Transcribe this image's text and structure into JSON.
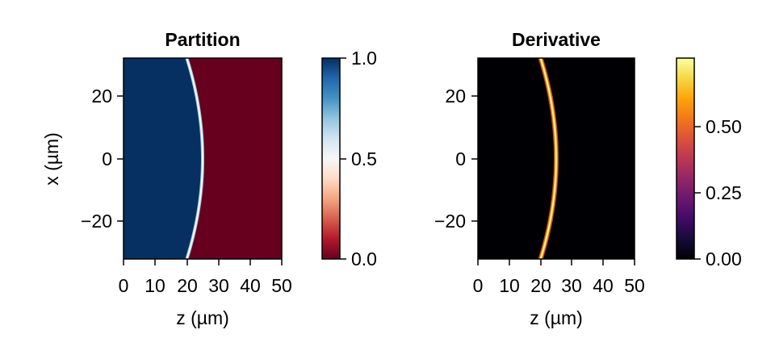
{
  "chart_data": [
    {
      "type": "heatmap",
      "title": "Partition",
      "xlabel": "z (µm)",
      "ylabel": "x (µm)",
      "xlim": [
        0,
        50
      ],
      "ylim": [
        -32,
        32
      ],
      "xticks": [
        0,
        10,
        20,
        30,
        40,
        50
      ],
      "yticks": [
        -20,
        0,
        20
      ],
      "xtick_labels": [
        "0",
        "10",
        "20",
        "30",
        "40",
        "50"
      ],
      "ytick_labels": [
        "−20",
        "0",
        "20"
      ],
      "colormap": "RdBu",
      "colors": {
        "low": "#67001f",
        "mid": "#f7f7f7",
        "high": "#053061"
      },
      "boundary": {
        "z_at_center": 25,
        "z_at_edge": 20,
        "edge_x": 32
      },
      "value_left": 1.0,
      "value_right": 0.0,
      "colorbar": {
        "range": [
          0,
          1
        ],
        "ticks": [
          0,
          0.5,
          1.0
        ],
        "tick_labels": [
          "0.0",
          "0.5",
          "1.0"
        ]
      }
    },
    {
      "type": "heatmap",
      "title": "Derivative",
      "xlabel": "z (µm)",
      "ylabel": "",
      "xlim": [
        0,
        50
      ],
      "ylim": [
        -32,
        32
      ],
      "xticks": [
        0,
        10,
        20,
        30,
        40,
        50
      ],
      "yticks": [
        -20,
        0,
        20
      ],
      "xtick_labels": [
        "0",
        "10",
        "20",
        "30",
        "40",
        "50"
      ],
      "ytick_labels": [
        "−20",
        "0",
        "20"
      ],
      "colormap": "inferno",
      "colors": {
        "background": "#000004",
        "line_core": "#fcffa4",
        "line_edge": "#f98e09"
      },
      "boundary": {
        "z_at_center": 25,
        "z_at_edge": 20,
        "edge_x": 32
      },
      "peak_value": 0.72,
      "colorbar": {
        "range": [
          0,
          0.72
        ],
        "ticks": [
          0,
          0.25,
          0.5
        ],
        "tick_labels": [
          "0.00",
          "0.25",
          "0.50"
        ]
      }
    }
  ]
}
